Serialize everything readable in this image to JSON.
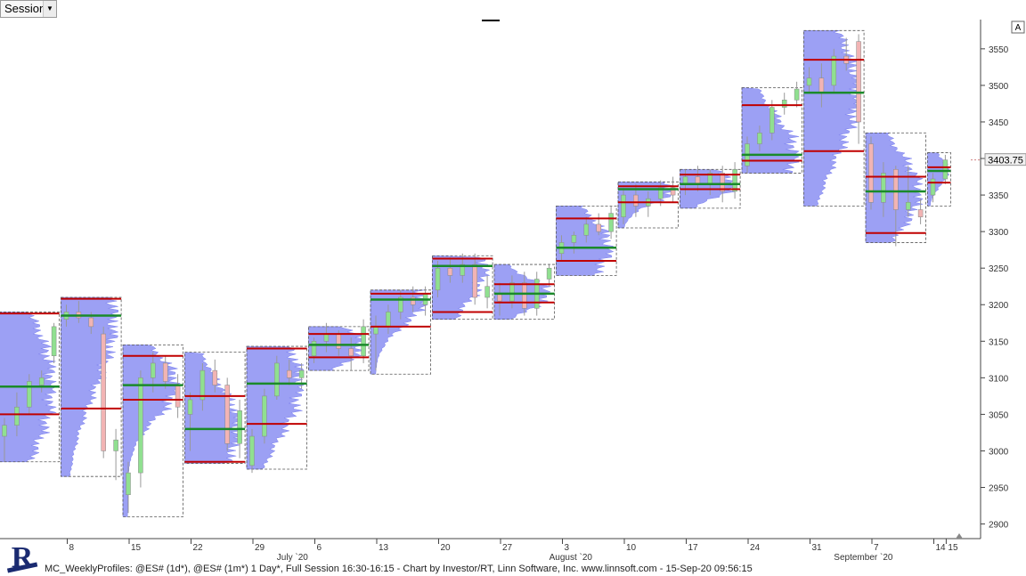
{
  "toolbar": {
    "session_label": "Session",
    "session_arrow": "▼"
  },
  "autoscale_label": "A",
  "last_price_label": "3403.75",
  "footer": {
    "status_text": "MC_WeeklyProfiles: @ES# (1d*), @ES# (1m*) 1 Day*, Full Session 16:30-16:15 - Chart by Investor/RT, Linn Software, Inc. www.linnsoft.com - 15-Sep-20 09:56:15"
  },
  "logo": {
    "letter": "R",
    "icon": "investor-rt-logo-icon"
  },
  "colors": {
    "profile": "#7b80f0",
    "value_line": "#c00000",
    "poc_line": "#1a8a2a",
    "up_candle": "#90e090",
    "down_candle": "#f2b4b4",
    "box": "#555555"
  },
  "chart_data": {
    "type": "candlestick",
    "y_ticks": [
      2900,
      2950,
      3000,
      3050,
      3100,
      3150,
      3200,
      3250,
      3300,
      3350,
      3400,
      3450,
      3500,
      3550
    ],
    "ylim": [
      2880,
      3590
    ],
    "x_ticks": [
      {
        "label": "8",
        "i": 5
      },
      {
        "label": "15",
        "i": 10
      },
      {
        "label": "22",
        "i": 15
      },
      {
        "label": "29",
        "i": 20
      },
      {
        "label": "6",
        "i": 25
      },
      {
        "label": "13",
        "i": 30
      },
      {
        "label": "20",
        "i": 35
      },
      {
        "label": "27",
        "i": 40
      },
      {
        "label": "3",
        "i": 45
      },
      {
        "label": "10",
        "i": 50
      },
      {
        "label": "17",
        "i": 55
      },
      {
        "label": "24",
        "i": 60
      },
      {
        "label": "31",
        "i": 65
      },
      {
        "label": "7",
        "i": 70
      },
      {
        "label": "14",
        "i": 75
      },
      {
        "label": "15",
        "i": 76
      }
    ],
    "month_labels": [
      {
        "label": "July `20",
        "i": 22
      },
      {
        "label": "August `20",
        "i": 44
      },
      {
        "label": "September `20",
        "i": 67
      }
    ],
    "candles": [
      [
        3020,
        3045,
        2985,
        3035
      ],
      [
        3035,
        3080,
        3020,
        3060
      ],
      [
        3060,
        3105,
        3050,
        3095
      ],
      [
        3090,
        3110,
        3080,
        3100
      ],
      [
        3130,
        3175,
        3120,
        3170
      ],
      [
        3180,
        3200,
        3170,
        3190
      ],
      [
        3190,
        3205,
        3175,
        3182
      ],
      [
        3182,
        3190,
        3160,
        3170
      ],
      [
        3160,
        3170,
        2990,
        3000
      ],
      [
        3000,
        3030,
        2960,
        3015
      ],
      [
        2940,
        2985,
        2915,
        2970
      ],
      [
        2970,
        3110,
        2950,
        3100
      ],
      [
        3100,
        3135,
        3080,
        3120
      ],
      [
        3120,
        3130,
        3085,
        3095
      ],
      [
        3090,
        3105,
        3045,
        3060
      ],
      [
        3050,
        3080,
        3000,
        3070
      ],
      [
        3070,
        3120,
        3055,
        3110
      ],
      [
        3110,
        3125,
        3080,
        3090
      ],
      [
        3090,
        3100,
        3000,
        3010
      ],
      [
        3010,
        3070,
        2990,
        3055
      ],
      [
        2980,
        3030,
        2970,
        3020
      ],
      [
        3020,
        3085,
        3010,
        3075
      ],
      [
        3075,
        3130,
        3070,
        3120
      ],
      [
        3110,
        3125,
        3090,
        3100
      ],
      [
        3100,
        3120,
        3085,
        3110
      ],
      [
        3130,
        3155,
        3120,
        3150
      ],
      [
        3150,
        3175,
        3135,
        3160
      ],
      [
        3160,
        3165,
        3130,
        3140
      ],
      [
        3140,
        3155,
        3110,
        3130
      ],
      [
        3130,
        3180,
        3120,
        3170
      ],
      [
        3160,
        3185,
        3110,
        3170
      ],
      [
        3170,
        3200,
        3160,
        3190
      ],
      [
        3190,
        3220,
        3180,
        3210
      ],
      [
        3210,
        3225,
        3190,
        3200
      ],
      [
        3200,
        3225,
        3185,
        3215
      ],
      [
        3220,
        3260,
        3210,
        3250
      ],
      [
        3250,
        3265,
        3230,
        3240
      ],
      [
        3240,
        3270,
        3230,
        3255
      ],
      [
        3255,
        3270,
        3200,
        3210
      ],
      [
        3210,
        3240,
        3195,
        3225
      ],
      [
        3215,
        3230,
        3185,
        3205
      ],
      [
        3205,
        3240,
        3195,
        3230
      ],
      [
        3230,
        3245,
        3185,
        3195
      ],
      [
        3195,
        3245,
        3185,
        3235
      ],
      [
        3235,
        3255,
        3225,
        3250
      ],
      [
        3270,
        3295,
        3260,
        3285
      ],
      [
        3285,
        3300,
        3270,
        3295
      ],
      [
        3295,
        3320,
        3285,
        3310
      ],
      [
        3310,
        3325,
        3295,
        3300
      ],
      [
        3300,
        3335,
        3290,
        3325
      ],
      [
        3320,
        3360,
        3310,
        3350
      ],
      [
        3350,
        3365,
        3320,
        3335
      ],
      [
        3335,
        3355,
        3320,
        3345
      ],
      [
        3345,
        3370,
        3335,
        3360
      ],
      [
        3360,
        3375,
        3340,
        3350
      ],
      [
        3365,
        3385,
        3350,
        3375
      ],
      [
        3375,
        3390,
        3355,
        3365
      ],
      [
        3365,
        3385,
        3350,
        3380
      ],
      [
        3380,
        3390,
        3340,
        3355
      ],
      [
        3355,
        3395,
        3345,
        3385
      ],
      [
        3390,
        3430,
        3380,
        3420
      ],
      [
        3420,
        3445,
        3410,
        3435
      ],
      [
        3435,
        3480,
        3425,
        3470
      ],
      [
        3470,
        3490,
        3460,
        3480
      ],
      [
        3480,
        3505,
        3470,
        3495
      ],
      [
        3500,
        3525,
        3490,
        3510
      ],
      [
        3510,
        3530,
        3470,
        3490
      ],
      [
        3500,
        3550,
        3490,
        3540
      ],
      [
        3540,
        3565,
        3520,
        3530
      ],
      [
        3560,
        3570,
        3420,
        3450
      ],
      [
        3420,
        3430,
        3330,
        3340
      ],
      [
        3340,
        3395,
        3320,
        3380
      ],
      [
        3385,
        3390,
        3280,
        3330
      ],
      [
        3330,
        3390,
        3320,
        3340
      ],
      [
        3330,
        3345,
        3310,
        3320
      ],
      [
        3350,
        3380,
        3340,
        3372
      ],
      [
        3372,
        3405,
        3365,
        3398
      ]
    ],
    "weekly_profiles": [
      {
        "start": 0,
        "end": 4,
        "high": 3190,
        "low": 2985,
        "vah": 3188,
        "poc": 3088,
        "val": 3050
      },
      {
        "start": 5,
        "end": 9,
        "high": 3210,
        "low": 2965,
        "vah": 3208,
        "poc": 3185,
        "val": 3058
      },
      {
        "start": 10,
        "end": 14,
        "high": 3145,
        "low": 2910,
        "vah": 3130,
        "poc": 3090,
        "val": 3070
      },
      {
        "start": 15,
        "end": 19,
        "high": 3135,
        "low": 2983,
        "vah": 3075,
        "poc": 3030,
        "val": 2985
      },
      {
        "start": 20,
        "end": 24,
        "high": 3143,
        "low": 2975,
        "vah": 3140,
        "poc": 3092,
        "val": 3037
      },
      {
        "start": 25,
        "end": 29,
        "high": 3170,
        "low": 3110,
        "vah": 3160,
        "poc": 3145,
        "val": 3128
      },
      {
        "start": 30,
        "end": 34,
        "high": 3220,
        "low": 3105,
        "vah": 3215,
        "poc": 3207,
        "val": 3170
      },
      {
        "start": 35,
        "end": 39,
        "high": 3267,
        "low": 3180,
        "vah": 3263,
        "poc": 3253,
        "val": 3190
      },
      {
        "start": 40,
        "end": 44,
        "high": 3255,
        "low": 3180,
        "vah": 3228,
        "poc": 3215,
        "val": 3203
      },
      {
        "start": 45,
        "end": 49,
        "high": 3335,
        "low": 3240,
        "vah": 3318,
        "poc": 3278,
        "val": 3260
      },
      {
        "start": 50,
        "end": 54,
        "high": 3368,
        "low": 3305,
        "vah": 3362,
        "poc": 3358,
        "val": 3340
      },
      {
        "start": 55,
        "end": 59,
        "high": 3385,
        "low": 3332,
        "vah": 3378,
        "poc": 3365,
        "val": 3358
      },
      {
        "start": 60,
        "end": 64,
        "high": 3497,
        "low": 3380,
        "vah": 3473,
        "poc": 3405,
        "val": 3397
      },
      {
        "start": 65,
        "end": 69,
        "high": 3575,
        "low": 3335,
        "vah": 3535,
        "poc": 3490,
        "val": 3410
      },
      {
        "start": 70,
        "end": 74,
        "high": 3435,
        "low": 3285,
        "vah": 3375,
        "poc": 3355,
        "val": 3298
      },
      {
        "start": 75,
        "end": 76,
        "high": 3408,
        "low": 3335,
        "vah": 3388,
        "poc": 3383,
        "val": 3367
      }
    ]
  }
}
